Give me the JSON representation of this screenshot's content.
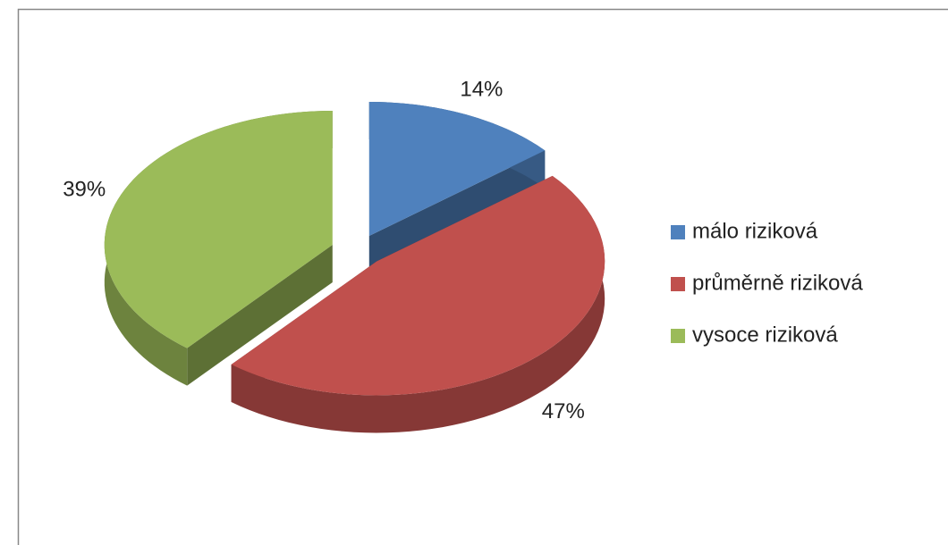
{
  "chart_data": {
    "type": "pie",
    "categories": [
      "málo riziková",
      "průměrně riziková",
      "vysoce riziková"
    ],
    "values": [
      14,
      47,
      39
    ],
    "value_labels": [
      "14%",
      "47%",
      "39%"
    ],
    "colors": [
      "#4f81bd",
      "#c0504d",
      "#9bbb59"
    ],
    "legend": "right"
  }
}
